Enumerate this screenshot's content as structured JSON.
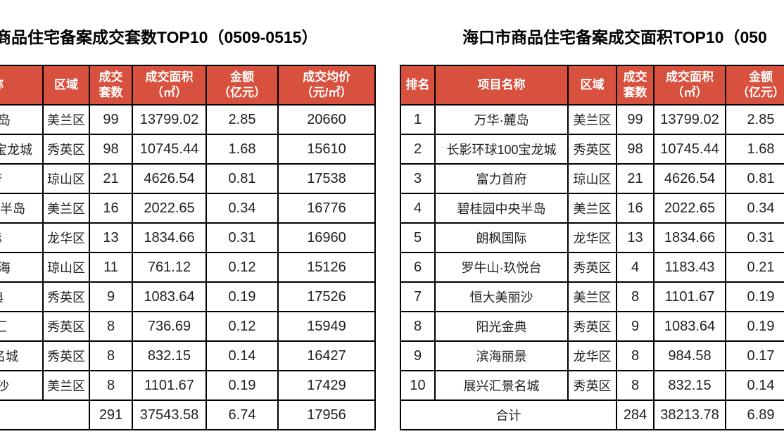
{
  "colors": {
    "header_bg": "#D8513E",
    "header_text": "#FFFFFF",
    "border": "#000000",
    "body_text": "#212121"
  },
  "left_table": {
    "title": "商品住宅备案成交套数TOP10（0509-0515）",
    "headers": {
      "name_fragment": "称",
      "region": "区域",
      "units": "成交\n套数",
      "area": "成交面积\n（㎡）",
      "amount": "金额\n（亿元）",
      "avg_price": "成交均价\n（元/㎡）"
    },
    "rows": [
      {
        "name": "岛",
        "region": "美兰区",
        "units": "99",
        "area": "13799.02",
        "amount": "2.85",
        "avg_price": "20660"
      },
      {
        "name": "宝龙城",
        "region": "秀英区",
        "units": "98",
        "area": "10745.44",
        "amount": "1.68",
        "avg_price": "15610"
      },
      {
        "name": "府",
        "region": "琼山区",
        "units": "21",
        "area": "4626.54",
        "amount": "0.81",
        "avg_price": "17538"
      },
      {
        "name": "半岛",
        "region": "美兰区",
        "units": "16",
        "area": "2022.65",
        "amount": "0.34",
        "avg_price": "16776"
      },
      {
        "name": "际",
        "region": "龙华区",
        "units": "13",
        "area": "1834.66",
        "amount": "0.31",
        "avg_price": "16960"
      },
      {
        "name": "海",
        "region": "琼山区",
        "units": "11",
        "area": "761.12",
        "amount": "0.12",
        "avg_price": "15126"
      },
      {
        "name": "典",
        "region": "秀英区",
        "units": "9",
        "area": "1083.64",
        "amount": "0.19",
        "avg_price": "17526"
      },
      {
        "name": "汇",
        "region": "秀英区",
        "units": "8",
        "area": "736.69",
        "amount": "0.12",
        "avg_price": "15949"
      },
      {
        "name": "名城",
        "region": "秀英区",
        "units": "8",
        "area": "832.15",
        "amount": "0.14",
        "avg_price": "16427"
      },
      {
        "name": "沙",
        "region": "美兰区",
        "units": "8",
        "area": "1101.67",
        "amount": "0.19",
        "avg_price": "17429"
      }
    ],
    "total": {
      "label": "",
      "units": "291",
      "area": "37543.58",
      "amount": "6.74",
      "avg_price": "17956"
    }
  },
  "right_table": {
    "title": "海口市商品住宅备案成交面积TOP10（050",
    "headers": {
      "rank": "排名",
      "name": "项目名称",
      "region": "区域",
      "units": "成交\n套数",
      "area": "成交面积\n（㎡）",
      "amount": "金额\n（亿元）"
    },
    "rows": [
      {
        "rank": "1",
        "name": "万华·麓岛",
        "region": "美兰区",
        "units": "99",
        "area": "13799.02",
        "amount": "2.85"
      },
      {
        "rank": "2",
        "name": "长影环球100宝龙城",
        "region": "秀英区",
        "units": "98",
        "area": "10745.44",
        "amount": "1.68"
      },
      {
        "rank": "3",
        "name": "富力首府",
        "region": "琼山区",
        "units": "21",
        "area": "4626.54",
        "amount": "0.81"
      },
      {
        "rank": "4",
        "name": "碧桂园中央半岛",
        "region": "美兰区",
        "units": "16",
        "area": "2022.65",
        "amount": "0.34"
      },
      {
        "rank": "5",
        "name": "朗枫国际",
        "region": "龙华区",
        "units": "13",
        "area": "1834.66",
        "amount": "0.31"
      },
      {
        "rank": "6",
        "name": "罗牛山·玖悦台",
        "region": "秀英区",
        "units": "4",
        "area": "1183.43",
        "amount": "0.21"
      },
      {
        "rank": "7",
        "name": "恒大美丽沙",
        "region": "美兰区",
        "units": "8",
        "area": "1101.67",
        "amount": "0.19"
      },
      {
        "rank": "8",
        "name": "阳光金典",
        "region": "秀英区",
        "units": "9",
        "area": "1083.64",
        "amount": "0.19"
      },
      {
        "rank": "9",
        "name": "滨海丽景",
        "region": "龙华区",
        "units": "8",
        "area": "984.58",
        "amount": "0.17"
      },
      {
        "rank": "10",
        "name": "展兴汇景名城",
        "region": "秀英区",
        "units": "8",
        "area": "832.15",
        "amount": "0.14"
      }
    ],
    "total": {
      "label": "合计",
      "units": "284",
      "area": "38213.78",
      "amount": "6.89"
    }
  }
}
